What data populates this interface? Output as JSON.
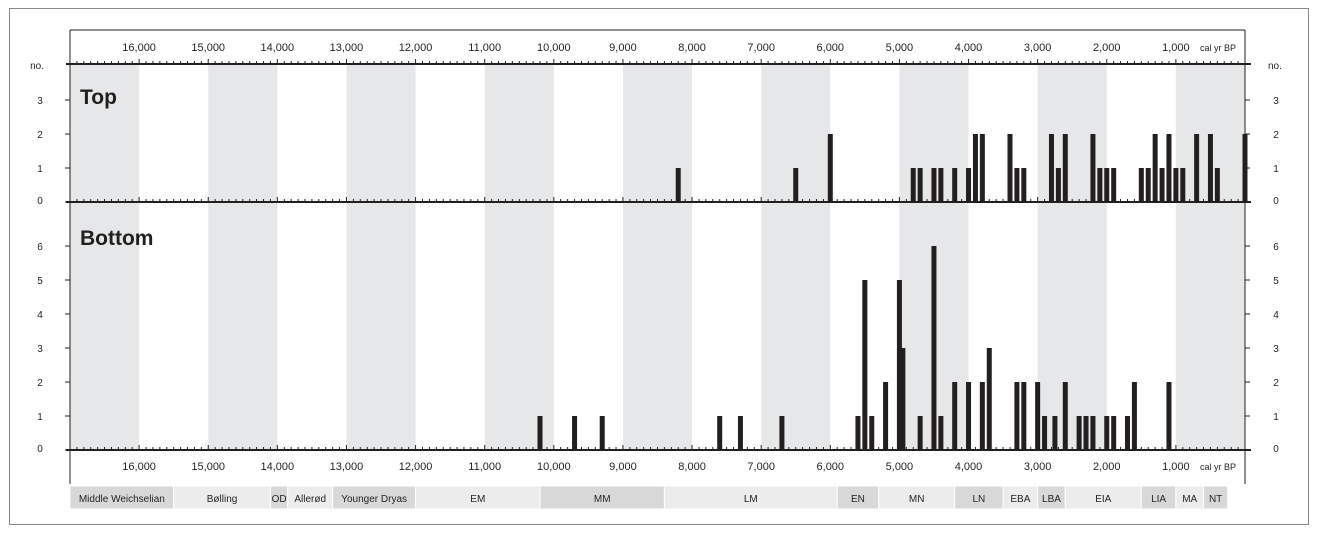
{
  "chart_data": {
    "type": "bar",
    "x_unit": "cal yr BP",
    "y_label": "no.",
    "xlim": [
      17000,
      0
    ],
    "x_ticks": [
      "16,000",
      "15,000",
      "14,000",
      "13,000",
      "12,000",
      "11,000",
      "10,000",
      "9,000",
      "8,000",
      "7,000",
      "6,000",
      "5,000",
      "4,000",
      "3,000",
      "2,000",
      "1,000"
    ],
    "x_tick_values": [
      16000,
      15000,
      14000,
      13000,
      12000,
      11000,
      10000,
      9000,
      8000,
      7000,
      6000,
      5000,
      4000,
      3000,
      2000,
      1000
    ],
    "shaded_bands": [
      [
        17000,
        16000
      ],
      [
        15000,
        14000
      ],
      [
        13000,
        12000
      ],
      [
        11000,
        10000
      ],
      [
        9000,
        8000
      ],
      [
        7000,
        6000
      ],
      [
        5000,
        4000
      ],
      [
        3000,
        2000
      ],
      [
        1000,
        0
      ]
    ],
    "colors": {
      "band": "#e6e7e8",
      "bar": "#231f20",
      "period_light": "#ececec",
      "period_dark": "#d8d8d8"
    },
    "panels": [
      {
        "name": "Top",
        "ylim": [
          0,
          3
        ],
        "y_ticks": [
          "0",
          "1",
          "2",
          "3"
        ],
        "bars": [
          {
            "x": 8200,
            "y": 1
          },
          {
            "x": 6500,
            "y": 1
          },
          {
            "x": 6000,
            "y": 2
          },
          {
            "x": 4800,
            "y": 1
          },
          {
            "x": 4700,
            "y": 1
          },
          {
            "x": 4500,
            "y": 1
          },
          {
            "x": 4400,
            "y": 1
          },
          {
            "x": 4200,
            "y": 1
          },
          {
            "x": 4000,
            "y": 1
          },
          {
            "x": 3900,
            "y": 2
          },
          {
            "x": 3800,
            "y": 2
          },
          {
            "x": 3400,
            "y": 2
          },
          {
            "x": 3300,
            "y": 1
          },
          {
            "x": 3200,
            "y": 1
          },
          {
            "x": 2800,
            "y": 2
          },
          {
            "x": 2700,
            "y": 1
          },
          {
            "x": 2600,
            "y": 2
          },
          {
            "x": 2200,
            "y": 2
          },
          {
            "x": 2100,
            "y": 1
          },
          {
            "x": 2000,
            "y": 1
          },
          {
            "x": 1900,
            "y": 1
          },
          {
            "x": 1500,
            "y": 1
          },
          {
            "x": 1400,
            "y": 1
          },
          {
            "x": 1300,
            "y": 2
          },
          {
            "x": 1200,
            "y": 1
          },
          {
            "x": 1100,
            "y": 2
          },
          {
            "x": 1000,
            "y": 1
          },
          {
            "x": 900,
            "y": 1
          },
          {
            "x": 700,
            "y": 2
          },
          {
            "x": 500,
            "y": 2
          },
          {
            "x": 400,
            "y": 1
          },
          {
            "x": 0,
            "y": 2
          }
        ]
      },
      {
        "name": "Bottom",
        "ylim": [
          0,
          6
        ],
        "y_ticks": [
          "0",
          "1",
          "2",
          "3",
          "4",
          "5",
          "6"
        ],
        "bars": [
          {
            "x": 10200,
            "y": 1
          },
          {
            "x": 9700,
            "y": 1
          },
          {
            "x": 9300,
            "y": 1
          },
          {
            "x": 7600,
            "y": 1
          },
          {
            "x": 7300,
            "y": 1
          },
          {
            "x": 6700,
            "y": 1
          },
          {
            "x": 5600,
            "y": 1
          },
          {
            "x": 5500,
            "y": 5
          },
          {
            "x": 5400,
            "y": 1
          },
          {
            "x": 5200,
            "y": 2
          },
          {
            "x": 5000,
            "y": 5
          },
          {
            "x": 4950,
            "y": 3
          },
          {
            "x": 4700,
            "y": 1
          },
          {
            "x": 4500,
            "y": 6
          },
          {
            "x": 4400,
            "y": 1
          },
          {
            "x": 4200,
            "y": 2
          },
          {
            "x": 4000,
            "y": 2
          },
          {
            "x": 3800,
            "y": 2
          },
          {
            "x": 3700,
            "y": 3
          },
          {
            "x": 3300,
            "y": 2
          },
          {
            "x": 3200,
            "y": 2
          },
          {
            "x": 3000,
            "y": 2
          },
          {
            "x": 2900,
            "y": 1
          },
          {
            "x": 2750,
            "y": 1
          },
          {
            "x": 2600,
            "y": 2
          },
          {
            "x": 2400,
            "y": 1
          },
          {
            "x": 2300,
            "y": 1
          },
          {
            "x": 2200,
            "y": 1
          },
          {
            "x": 2000,
            "y": 1
          },
          {
            "x": 1900,
            "y": 1
          },
          {
            "x": 1700,
            "y": 1
          },
          {
            "x": 1600,
            "y": 2
          },
          {
            "x": 1100,
            "y": 2
          }
        ]
      }
    ],
    "periods": [
      {
        "label": "Middle Weichselian",
        "start": 17000,
        "end": 15500,
        "shade": "dark"
      },
      {
        "label": "Bølling",
        "start": 15500,
        "end": 14100,
        "shade": "light"
      },
      {
        "label": "OD",
        "start": 14100,
        "end": 13850,
        "shade": "dark"
      },
      {
        "label": "Allerød",
        "start": 13850,
        "end": 13200,
        "shade": "light"
      },
      {
        "label": "Younger Dryas",
        "start": 13200,
        "end": 12000,
        "shade": "dark"
      },
      {
        "label": "EM",
        "start": 12000,
        "end": 10200,
        "shade": "light"
      },
      {
        "label": "MM",
        "start": 10200,
        "end": 8400,
        "shade": "dark"
      },
      {
        "label": "LM",
        "start": 8400,
        "end": 5900,
        "shade": "light"
      },
      {
        "label": "EN",
        "start": 5900,
        "end": 5300,
        "shade": "dark"
      },
      {
        "label": "MN",
        "start": 5300,
        "end": 4200,
        "shade": "light"
      },
      {
        "label": "LN",
        "start": 4200,
        "end": 3500,
        "shade": "dark"
      },
      {
        "label": "EBA",
        "start": 3500,
        "end": 3000,
        "shade": "light"
      },
      {
        "label": "LBA",
        "start": 3000,
        "end": 2600,
        "shade": "dark"
      },
      {
        "label": "EIA",
        "start": 2600,
        "end": 1500,
        "shade": "light"
      },
      {
        "label": "LIA",
        "start": 1500,
        "end": 1000,
        "shade": "dark"
      },
      {
        "label": "MA",
        "start": 1000,
        "end": 600,
        "shade": "light"
      },
      {
        "label": "NT",
        "start": 600,
        "end": 250,
        "shade": "dark"
      }
    ]
  }
}
